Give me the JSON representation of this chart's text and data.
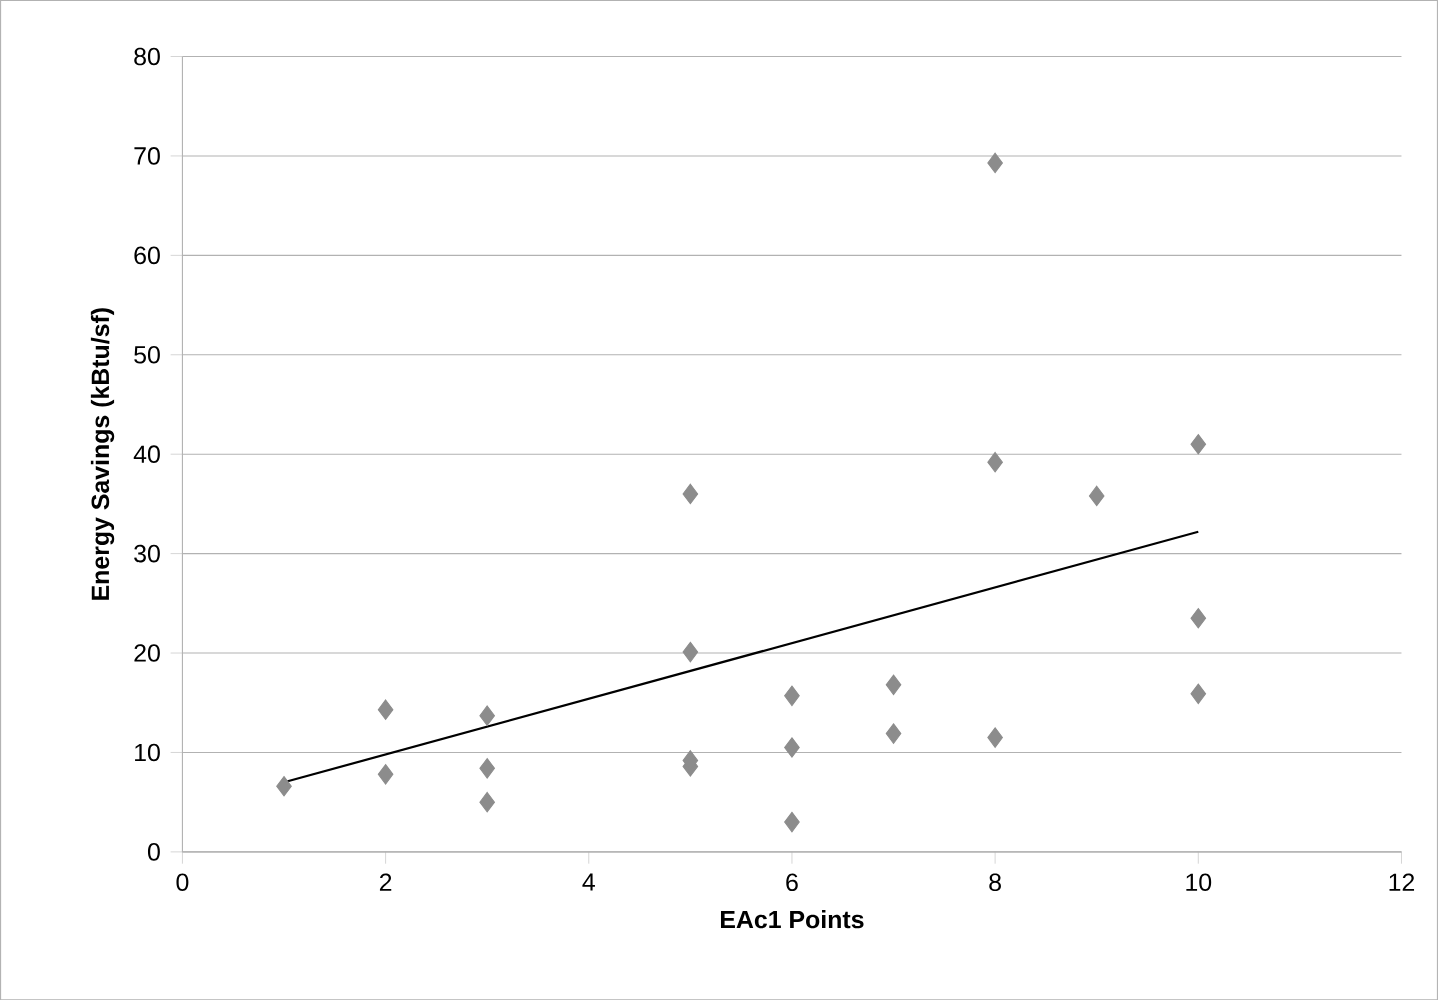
{
  "chart_data": {
    "type": "scatter",
    "xlabel": "EAc1 Points",
    "ylabel": "Energy Savings (kBtu/sf)",
    "xlim": [
      0,
      12
    ],
    "ylim": [
      0,
      80
    ],
    "xticks": [
      0,
      2,
      4,
      6,
      8,
      10,
      12
    ],
    "yticks": [
      0,
      10,
      20,
      30,
      40,
      50,
      60,
      70,
      80
    ],
    "grid": "y",
    "marker": "diamond",
    "series": [
      {
        "color": "#8c8c8c",
        "x": [
          1,
          2,
          2,
          3,
          3,
          3,
          5,
          5,
          5,
          5,
          6,
          6,
          6,
          7,
          7,
          8,
          8,
          8,
          9,
          10,
          10,
          10
        ],
        "values": [
          6.6,
          14.3,
          7.8,
          13.7,
          8.4,
          5.0,
          36.0,
          20.1,
          8.6,
          9.2,
          15.7,
          10.5,
          3.0,
          16.8,
          11.9,
          69.3,
          39.2,
          11.5,
          35.8,
          41.0,
          23.5,
          15.9
        ]
      },
      {
        "type": "line",
        "color": "#000000",
        "marker": "none",
        "x": [
          1,
          10
        ],
        "values": [
          7.0,
          32.2
        ]
      }
    ]
  }
}
